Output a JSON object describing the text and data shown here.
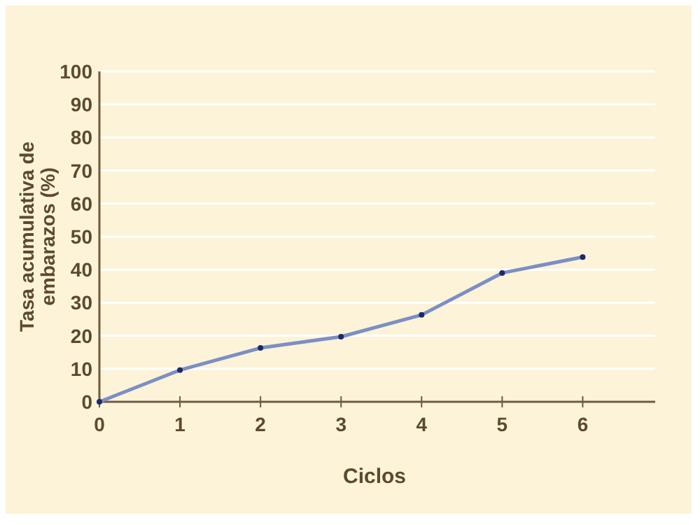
{
  "chart_data": {
    "type": "line",
    "xlabel": "Ciclos",
    "ylabel": "Tasa acumulativa de embarazos (%)",
    "x": [
      0,
      1,
      2,
      3,
      4,
      5,
      6
    ],
    "series": [
      {
        "color": "#7b8fc4",
        "values": [
          0,
          9.6,
          16.3,
          19.7,
          26.3,
          39,
          43.8
        ]
      }
    ],
    "xlim": [
      0,
      6.9
    ],
    "xticks": [
      0,
      1,
      2,
      3,
      4,
      5,
      6
    ],
    "ylim": [
      0,
      100
    ],
    "yticks": [
      0,
      10,
      20,
      30,
      40,
      50,
      60,
      70,
      80,
      90,
      100
    ],
    "grid": "y",
    "marker": "circle",
    "line_style": "solid"
  }
}
